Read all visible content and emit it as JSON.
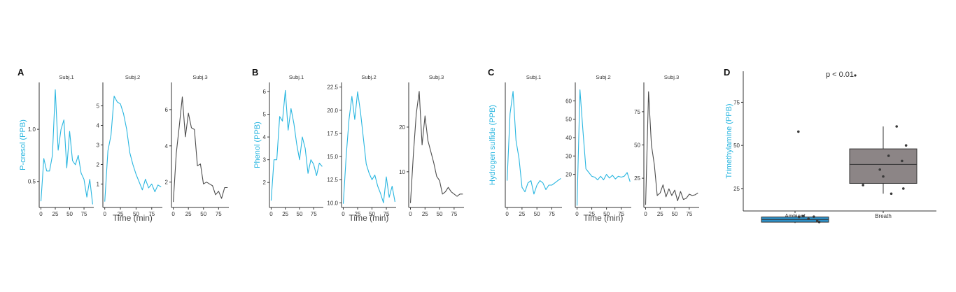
{
  "colors": {
    "blue": "#29b6e0",
    "gray": "#4d4d4d",
    "box_gray": "#8c8586",
    "box_blue": "#2e8fc5"
  },
  "chart_data": [
    {
      "panel": "A",
      "type": "line",
      "ylabel": "P-cresol (PPB)",
      "xlabel": "Time (min)",
      "ylim": [
        0.25,
        1.45
      ],
      "yticks": [
        0.5,
        1.0
      ],
      "ytick_labels": [
        "0.5",
        "1.0"
      ],
      "xlim": [
        -3,
        92
      ],
      "xticks": [
        0,
        25,
        50,
        75
      ],
      "facets": [
        {
          "strip": "Subj.1",
          "color": "blue",
          "x": [
            0,
            5,
            10,
            15,
            20,
            25,
            30,
            35,
            40,
            45,
            50,
            55,
            60,
            65,
            70,
            75,
            80,
            85,
            90
          ],
          "y": [
            0.31,
            0.72,
            0.6,
            0.6,
            0.75,
            1.38,
            0.8,
            1.0,
            1.09,
            0.63,
            0.98,
            0.7,
            0.66,
            0.75,
            0.58,
            0.52,
            0.35,
            0.52,
            0.28
          ]
        },
        {
          "strip": "Subj.2",
          "color": "blue",
          "ylim": [
            -0.2,
            6.2
          ],
          "yticks": [
            1,
            2,
            3,
            4,
            5
          ],
          "ytick_labels": [
            "1",
            "2",
            "3",
            "4",
            "5"
          ],
          "x": [
            0,
            5,
            10,
            15,
            20,
            25,
            30,
            35,
            40,
            45,
            50,
            55,
            60,
            65,
            70,
            75,
            80,
            85,
            90
          ],
          "y": [
            0.1,
            2.7,
            3.5,
            5.5,
            5.2,
            5.1,
            4.6,
            3.8,
            2.6,
            2.0,
            1.5,
            1.1,
            0.7,
            1.25,
            0.8,
            1.0,
            0.6,
            0.95,
            0.85
          ]
        },
        {
          "strip": "Subj.3",
          "color": "gray",
          "ylim": [
            0.6,
            7.5
          ],
          "yticks": [
            2,
            4,
            6
          ],
          "ytick_labels": [
            "2",
            "4",
            "6"
          ],
          "x": [
            0,
            5,
            10,
            15,
            20,
            25,
            30,
            35,
            40,
            45,
            50,
            55,
            60,
            65,
            70,
            75,
            80,
            85,
            90
          ],
          "y": [
            0.9,
            3.6,
            5.1,
            6.7,
            4.5,
            5.8,
            5.0,
            4.9,
            2.9,
            3.0,
            1.9,
            2.0,
            1.9,
            1.8,
            1.3,
            1.5,
            1.1,
            1.7,
            1.7
          ]
        }
      ]
    },
    {
      "panel": "B",
      "type": "line",
      "ylabel": "Phenol (PPB)",
      "xlabel": "Time (min)",
      "ylim": [
        0.9,
        6.4
      ],
      "yticks": [
        2,
        3,
        4,
        5,
        6
      ],
      "ytick_labels": [
        "2",
        "3",
        "4",
        "5",
        "6"
      ],
      "xlim": [
        -3,
        92
      ],
      "xticks": [
        0,
        25,
        50,
        75
      ],
      "facets": [
        {
          "strip": "Subj.1",
          "color": "blue",
          "x": [
            0,
            5,
            10,
            15,
            20,
            25,
            30,
            35,
            40,
            45,
            50,
            55,
            60,
            65,
            70,
            75,
            80,
            85,
            90
          ],
          "y": [
            1.2,
            3.0,
            3.0,
            4.9,
            4.7,
            6.05,
            4.3,
            5.25,
            4.6,
            3.7,
            3.0,
            4.0,
            3.5,
            2.4,
            3.0,
            2.8,
            2.3,
            2.85,
            2.7
          ]
        },
        {
          "strip": "Subj.2",
          "color": "blue",
          "ylim": [
            9.5,
            23.0
          ],
          "yticks": [
            10.0,
            12.5,
            15.0,
            17.5,
            20.0,
            22.5
          ],
          "ytick_labels": [
            "10.0",
            "12.5",
            "15.0",
            "17.5",
            "20.0",
            "22.5"
          ],
          "x": [
            0,
            5,
            10,
            15,
            20,
            25,
            30,
            35,
            40,
            45,
            50,
            55,
            60,
            65,
            70,
            75,
            80,
            85,
            90
          ],
          "y": [
            9.9,
            15.0,
            19.0,
            21.5,
            19.0,
            22.0,
            19.8,
            17.0,
            14.2,
            13.2,
            12.5,
            13.0,
            11.8,
            11.0,
            10.0,
            12.8,
            10.6,
            11.8,
            10.1
          ]
        },
        {
          "strip": "Subj.3",
          "color": "gray",
          "ylim": [
            2.0,
            30.0
          ],
          "yticks": [
            10,
            20
          ],
          "ytick_labels": [
            "10",
            "20"
          ],
          "x": [
            0,
            5,
            10,
            15,
            20,
            25,
            30,
            35,
            40,
            45,
            50,
            55,
            60,
            65,
            70,
            75,
            80,
            85,
            90
          ],
          "y": [
            3.0,
            14.0,
            23.0,
            28.0,
            16.0,
            22.5,
            17.0,
            14.5,
            12.0,
            9.0,
            8.0,
            5.0,
            5.5,
            6.5,
            5.5,
            5.0,
            4.5,
            5.0,
            5.0
          ]
        }
      ]
    },
    {
      "panel": "C",
      "type": "line",
      "ylabel": "Hydrogen sulfide (PPB)",
      "xlabel": "Time (min)",
      "ylim": [
        0.0,
        28.0
      ],
      "yticks": [],
      "ytick_labels": [],
      "xlim": [
        -3,
        92
      ],
      "xticks": [
        0,
        25,
        50,
        75
      ],
      "facets": [
        {
          "strip": "Subj.1",
          "color": "blue",
          "x": [
            0,
            5,
            10,
            15,
            20,
            25,
            30,
            35,
            40,
            45,
            50,
            55,
            60,
            65,
            70,
            75,
            80,
            85,
            90
          ],
          "y": [
            6.0,
            21.0,
            26.0,
            15.0,
            11.0,
            4.5,
            3.5,
            5.5,
            6.0,
            3.0,
            5.0,
            6.0,
            5.5,
            4.0,
            5.0,
            5.0,
            5.5,
            6.0,
            6.5
          ]
        },
        {
          "strip": "Subj.2",
          "color": "blue",
          "ylim": [
            2.0,
            70.0
          ],
          "yticks": [
            20,
            30,
            40,
            50,
            60
          ],
          "ytick_labels": [
            "20",
            "30",
            "40",
            "50",
            "60"
          ],
          "x": [
            0,
            5,
            10,
            15,
            20,
            25,
            30,
            35,
            40,
            45,
            50,
            55,
            60,
            65,
            70,
            75,
            80,
            85,
            90
          ],
          "y": [
            3.0,
            66.0,
            44.0,
            23.0,
            21.0,
            19.0,
            18.5,
            17.0,
            19.0,
            17.0,
            20.0,
            18.0,
            19.5,
            17.5,
            19.0,
            18.5,
            19.0,
            21.0,
            16.0
          ]
        },
        {
          "strip": "Subj.3",
          "color": "gray",
          "ylim": [
            3.0,
            97.0
          ],
          "yticks": [
            25,
            50,
            75
          ],
          "ytick_labels": [
            "25",
            "50",
            "75"
          ],
          "x": [
            0,
            5,
            10,
            15,
            20,
            25,
            30,
            35,
            40,
            45,
            50,
            55,
            60,
            65,
            70,
            75,
            80,
            85,
            90
          ],
          "y": [
            5.0,
            90.0,
            50.0,
            35.0,
            12.0,
            14.0,
            20.0,
            11.0,
            17.0,
            12.0,
            16.0,
            8.0,
            15.0,
            9.0,
            10.0,
            13.0,
            12.0,
            12.5,
            14.0
          ]
        }
      ]
    },
    {
      "panel": "D",
      "type": "box",
      "ylabel": "Trimethylamine (PPB)",
      "annotation": "p < 0.01",
      "ylim": [
        12,
        93
      ],
      "yticks": [
        25,
        50,
        75
      ],
      "ytick_labels": [
        "25",
        "50",
        "75"
      ],
      "categories": [
        "Ambient",
        "Breath"
      ],
      "boxes": [
        {
          "category": "Ambient",
          "color": "box_blue",
          "q1": 5.5,
          "median": 7.0,
          "q3": 8.5,
          "whisker_low": 5.0,
          "whisker_high": 9.0,
          "points": [
            [
              0.05,
              58
            ],
            [
              0.06,
              8.5
            ],
            [
              0.12,
              9.0
            ],
            [
              0.2,
              7.5
            ],
            [
              0.28,
              8.7
            ],
            [
              0.33,
              6.2
            ],
            [
              0.36,
              5.6
            ]
          ]
        },
        {
          "category": "Breath",
          "color": "box_gray",
          "q1": 28.0,
          "median": 39.0,
          "q3": 48.0,
          "whisker_low": 22.0,
          "whisker_high": 61.0,
          "points": [
            [
              -0.3,
              27
            ],
            [
              -0.05,
              36
            ],
            [
              0.0,
              32
            ],
            [
              0.08,
              44
            ],
            [
              0.12,
              22
            ],
            [
              0.2,
              61
            ],
            [
              0.28,
              41
            ],
            [
              0.34,
              50
            ],
            [
              0.3,
              25
            ]
          ]
        }
      ]
    }
  ]
}
